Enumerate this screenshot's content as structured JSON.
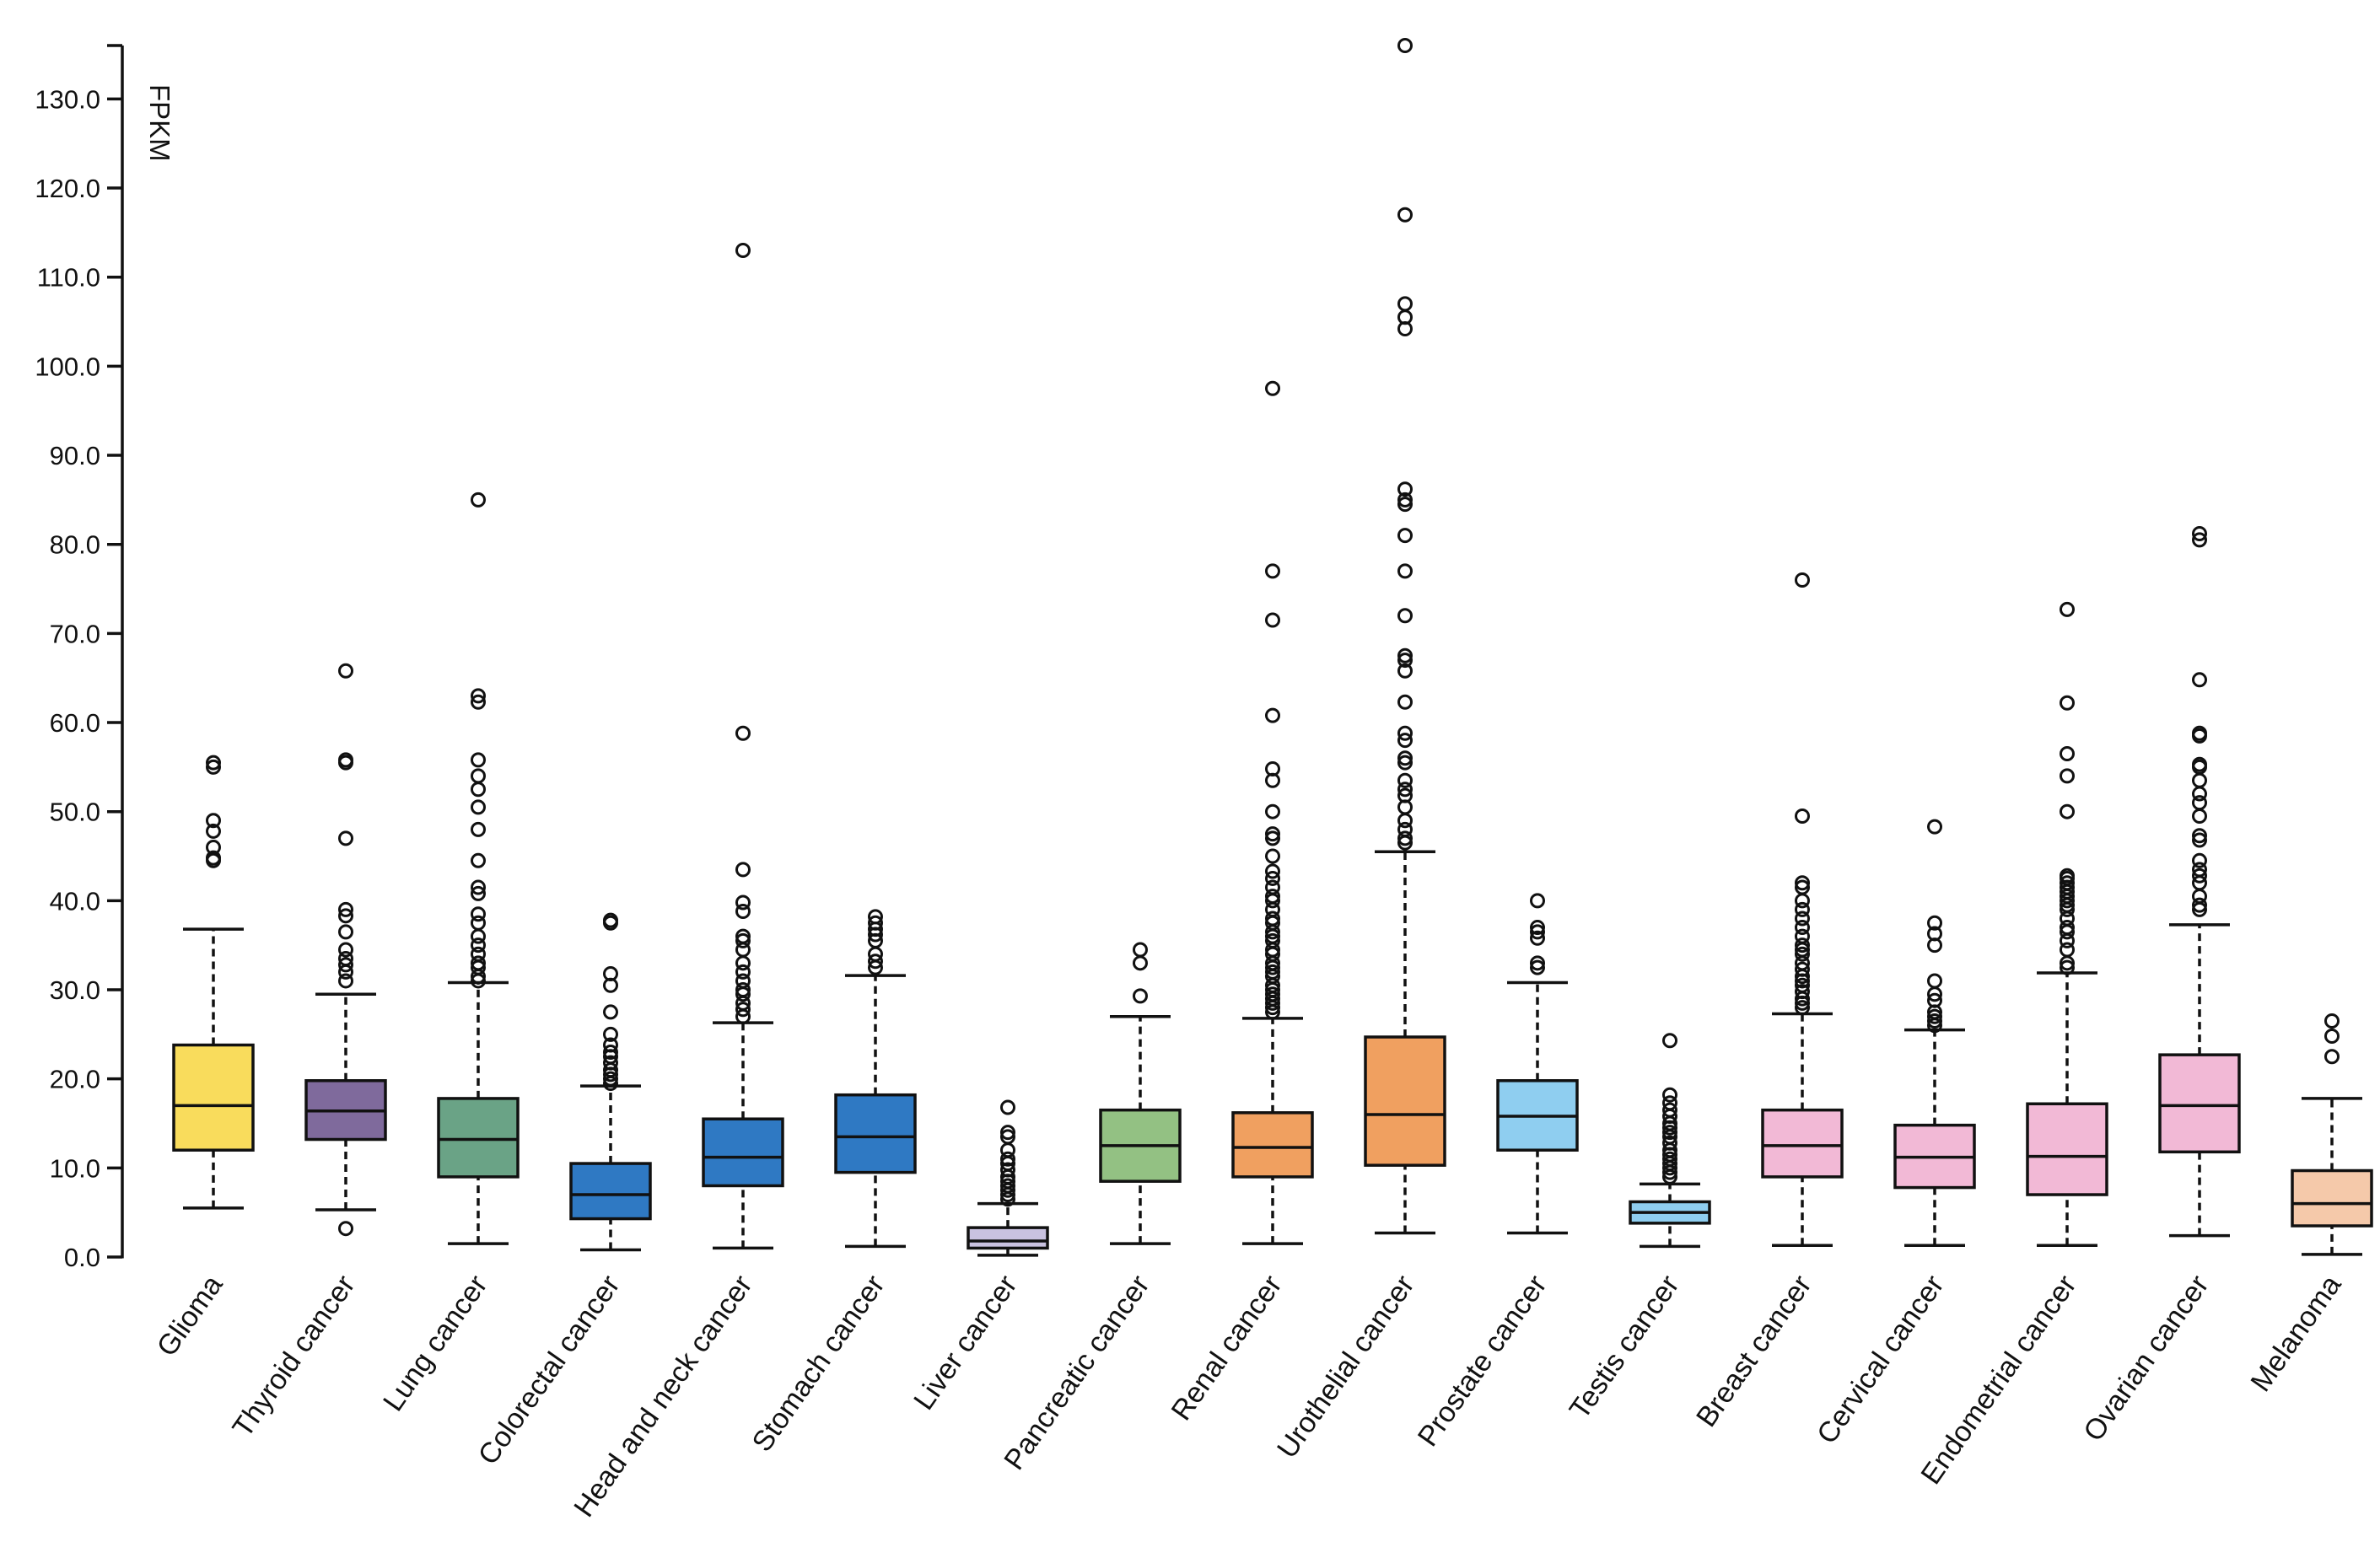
{
  "chart_data": {
    "type": "boxplot",
    "y_label": "FPKM",
    "ylim": [
      0,
      136
    ],
    "yticks": [
      {
        "value": 0,
        "label": "0.0"
      },
      {
        "value": 10,
        "label": "10.0"
      },
      {
        "value": 20,
        "label": "20.0"
      },
      {
        "value": 30,
        "label": "30.0"
      },
      {
        "value": 40,
        "label": "40.0"
      },
      {
        "value": 50,
        "label": "50.0"
      },
      {
        "value": 60,
        "label": "60.0"
      },
      {
        "value": 70,
        "label": "70.0"
      },
      {
        "value": 80,
        "label": "80.0"
      },
      {
        "value": 90,
        "label": "90.0"
      },
      {
        "value": 100,
        "label": "100.0"
      },
      {
        "value": 110,
        "label": "110.0"
      },
      {
        "value": 120,
        "label": "120.0"
      },
      {
        "value": 130,
        "label": "130.0"
      }
    ],
    "boxes": [
      {
        "name": "Glioma",
        "color": "#f9dc5c",
        "whisker_low": 5.5,
        "q1": 12,
        "median": 17,
        "q3": 23.8,
        "whisker_high": 36.8,
        "outliers": [
          55.5,
          55,
          49,
          47.8,
          46,
          44.8,
          44.5
        ]
      },
      {
        "name": "Thyroid cancer",
        "color": "#7f6a9c",
        "whisker_low": 5.3,
        "q1": 13.2,
        "median": 16.4,
        "q3": 19.8,
        "whisker_high": 29.5,
        "outliers": [
          3.2,
          65.8,
          55.8,
          55.5,
          47,
          39,
          38.3,
          36.5,
          34.5,
          33.5,
          32.8,
          32,
          31
        ]
      },
      {
        "name": "Lung cancer",
        "color": "#6aa386",
        "whisker_low": 1.5,
        "q1": 9,
        "median": 13.2,
        "q3": 17.8,
        "whisker_high": 30.8,
        "outliers": [
          85,
          63,
          62.3,
          55.8,
          54,
          52.5,
          50.5,
          48,
          44.5,
          41.5,
          40.8,
          38.5,
          37.5,
          36,
          35,
          34,
          33,
          32.5,
          31.5,
          31
        ]
      },
      {
        "name": "Colorectal cancer",
        "color": "#2f79c3",
        "whisker_low": 0.8,
        "q1": 4.3,
        "median": 7,
        "q3": 10.5,
        "whisker_high": 19.2,
        "outliers": [
          37.8,
          37.5,
          31.8,
          30.5,
          27.5,
          25,
          23.8,
          23,
          22.5,
          21.8,
          21,
          20.5,
          20,
          19.5
        ]
      },
      {
        "name": "Head and neck cancer",
        "color": "#2f79c3",
        "whisker_low": 1,
        "q1": 8,
        "median": 11.2,
        "q3": 15.5,
        "whisker_high": 26.3,
        "outliers": [
          113,
          58.8,
          43.5,
          39.8,
          38.8,
          36,
          35.5,
          34.5,
          33,
          32,
          31,
          30,
          29.5,
          28.5,
          27.8,
          27
        ]
      },
      {
        "name": "Stomach cancer",
        "color": "#2f79c3",
        "whisker_low": 1.2,
        "q1": 9.5,
        "median": 13.5,
        "q3": 18.2,
        "whisker_high": 31.6,
        "outliers": [
          38.2,
          37.5,
          36.8,
          36.2,
          35.5,
          34,
          33.2,
          32.5
        ]
      },
      {
        "name": "Liver cancer",
        "color": "#c9c2e0",
        "whisker_low": 0.2,
        "q1": 1,
        "median": 1.8,
        "q3": 3.3,
        "whisker_high": 6,
        "outliers": [
          16.8,
          14,
          13.5,
          12,
          11,
          10.5,
          9.8,
          9,
          8.5,
          8,
          7.5,
          7,
          6.5
        ]
      },
      {
        "name": "Pancreatic cancer",
        "color": "#93c183",
        "whisker_low": 1.5,
        "q1": 8.5,
        "median": 12.5,
        "q3": 16.5,
        "whisker_high": 27,
        "outliers": [
          34.5,
          33,
          29.3
        ]
      },
      {
        "name": "Renal cancer",
        "color": "#f0a060",
        "whisker_low": 1.5,
        "q1": 9,
        "median": 12.3,
        "q3": 16.2,
        "whisker_high": 26.8,
        "outliers": [
          97.5,
          77,
          71.5,
          60.8,
          54.8,
          53.5,
          50,
          47.5,
          47,
          45,
          43.3,
          42.5,
          41.5,
          40.5,
          40,
          39,
          38,
          37.5,
          36.5,
          36,
          35.5,
          34.5,
          34,
          33,
          32.5,
          32,
          31.5,
          30.5,
          30,
          29.5,
          29,
          28.5,
          28,
          27.5
        ]
      },
      {
        "name": "Urothelial cancer",
        "color": "#f0a060",
        "whisker_low": 2.7,
        "q1": 10.3,
        "median": 16,
        "q3": 24.7,
        "whisker_high": 45.5,
        "outliers": [
          136,
          117,
          107,
          105.5,
          104.2,
          86.2,
          85,
          84.5,
          81,
          77,
          72,
          67.5,
          67,
          65.8,
          62.3,
          58.8,
          58,
          56,
          55.5,
          53.5,
          52.5,
          51.8,
          50.5,
          49,
          48,
          47,
          46.5
        ]
      },
      {
        "name": "Prostate cancer",
        "color": "#8fcef0",
        "whisker_low": 2.7,
        "q1": 12,
        "median": 15.8,
        "q3": 19.8,
        "whisker_high": 30.8,
        "outliers": [
          40,
          37,
          36.5,
          35.8,
          33,
          32.5
        ]
      },
      {
        "name": "Testis cancer",
        "color": "#8fcef0",
        "whisker_low": 1.2,
        "q1": 3.8,
        "median": 5,
        "q3": 6.2,
        "whisker_high": 8.2,
        "outliers": [
          24.3,
          18.2,
          17.3,
          16.5,
          15.8,
          15,
          14.5,
          14,
          13.5,
          12.8,
          12,
          11.5,
          11,
          10.5,
          10,
          9.5,
          9
        ]
      },
      {
        "name": "Breast cancer",
        "color": "#f2b9d6",
        "whisker_low": 1.3,
        "q1": 9,
        "median": 12.5,
        "q3": 16.5,
        "whisker_high": 27.3,
        "outliers": [
          76,
          49.5,
          42,
          41.5,
          40,
          39,
          38,
          37,
          36,
          35,
          34.5,
          34,
          33,
          32.3,
          31.5,
          31,
          30.5,
          29.8,
          29,
          28.5,
          28
        ]
      },
      {
        "name": "Cervical cancer",
        "color": "#f2b9d6",
        "whisker_low": 1.3,
        "q1": 7.8,
        "median": 11.2,
        "q3": 14.8,
        "whisker_high": 25.5,
        "outliers": [
          48.3,
          37.5,
          36.3,
          35,
          31,
          29.5,
          28.8,
          27.5,
          27,
          26.5,
          26
        ]
      },
      {
        "name": "Endometrial cancer",
        "color": "#f2b9d6",
        "whisker_low": 1.3,
        "q1": 7,
        "median": 11.3,
        "q3": 17.2,
        "whisker_high": 31.9,
        "outliers": [
          72.7,
          62.2,
          56.5,
          54,
          50,
          42.8,
          42.5,
          42,
          41.5,
          41,
          40.5,
          40,
          39.5,
          39,
          38,
          37,
          36.5,
          35.5,
          34.5,
          33,
          32.5
        ]
      },
      {
        "name": "Ovarian cancer",
        "color": "#f2b9d6",
        "whisker_low": 2.4,
        "q1": 11.8,
        "median": 17,
        "q3": 22.7,
        "whisker_high": 37.3,
        "outliers": [
          81.2,
          80.5,
          64.8,
          58.8,
          58.5,
          55.3,
          55,
          53.5,
          52,
          51,
          49.5,
          47.3,
          46.8,
          44.5,
          43.5,
          42.8,
          42,
          40.5,
          39.5,
          39
        ]
      },
      {
        "name": "Melanoma",
        "color": "#f5c9aa",
        "whisker_low": 0.3,
        "q1": 3.5,
        "median": 6,
        "q3": 9.7,
        "whisker_high": 17.8,
        "outliers": [
          26.5,
          24.8,
          22.5
        ]
      }
    ]
  }
}
